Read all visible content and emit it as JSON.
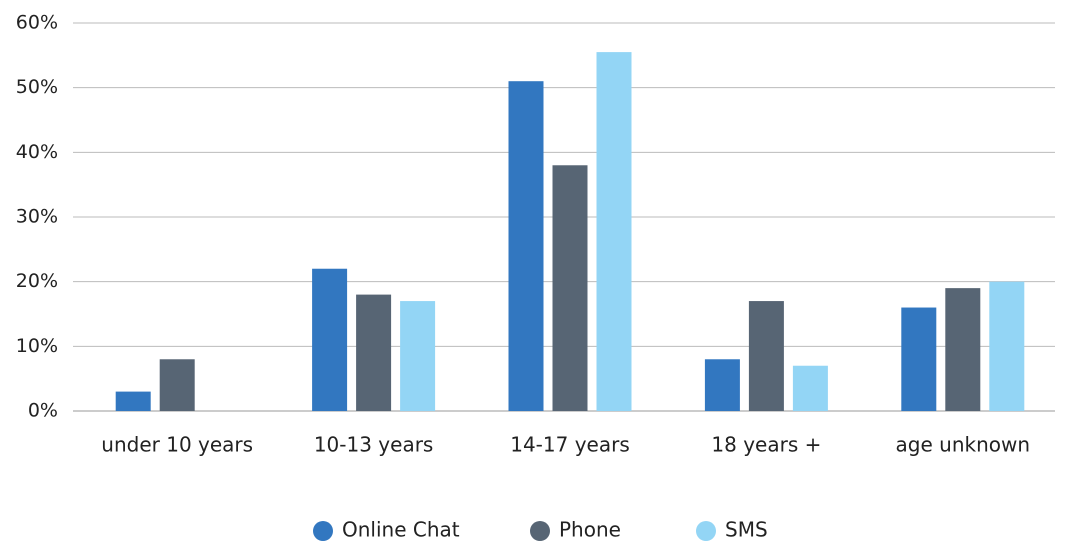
{
  "chart_data": {
    "type": "bar",
    "categories": [
      "under 10 years",
      "10-13 years",
      "14-17 years",
      "18 years +",
      "age unknown"
    ],
    "series": [
      {
        "name": "Online Chat",
        "color": "#3277c0",
        "values": [
          3,
          22,
          51,
          8,
          16
        ]
      },
      {
        "name": "Phone",
        "color": "#576574",
        "values": [
          8,
          18,
          38,
          17,
          19
        ]
      },
      {
        "name": "SMS",
        "color": "#93d5f5",
        "values": [
          0,
          17,
          55.5,
          7,
          20
        ]
      }
    ],
    "ylim": [
      0,
      60
    ],
    "yticks": [
      {
        "value": 0,
        "label": "0%"
      },
      {
        "value": 10,
        "label": "10%"
      },
      {
        "value": 20,
        "label": "20%"
      },
      {
        "value": 30,
        "label": "30%"
      },
      {
        "value": 40,
        "label": "40%"
      },
      {
        "value": 50,
        "label": "50%"
      },
      {
        "value": 60,
        "label": "60%"
      }
    ],
    "grid": true,
    "legend": "bottom"
  }
}
